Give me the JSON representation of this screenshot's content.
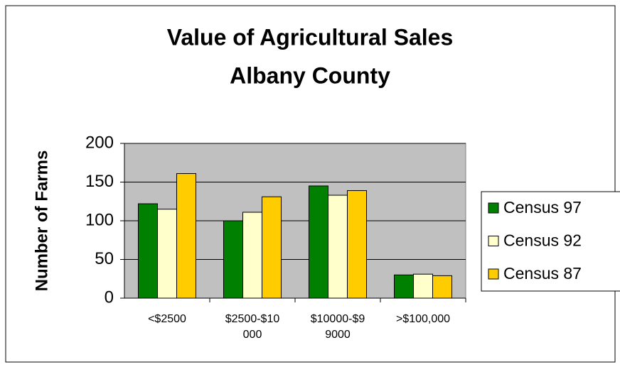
{
  "chart_data": {
    "type": "bar",
    "title": "Value of Agricultural Sales",
    "subtitle": "Albany County",
    "y_label": "Number of Farms",
    "categories": [
      "<$2500",
      "$2500-$10000",
      "$10000-$99000",
      ">$100,000"
    ],
    "series": [
      {
        "name": "Census 97",
        "color": "#008000",
        "values": [
          122,
          100,
          145,
          30
        ]
      },
      {
        "name": "Census 92",
        "color": "#ffffcc",
        "values": [
          115,
          111,
          133,
          31
        ]
      },
      {
        "name": "Census 87",
        "color": "#ffcc00",
        "values": [
          161,
          131,
          139,
          29
        ]
      }
    ],
    "ylim": [
      0,
      200
    ],
    "yticks": [
      0,
      50,
      100,
      150,
      200
    ],
    "grid": true,
    "legend": "right"
  }
}
